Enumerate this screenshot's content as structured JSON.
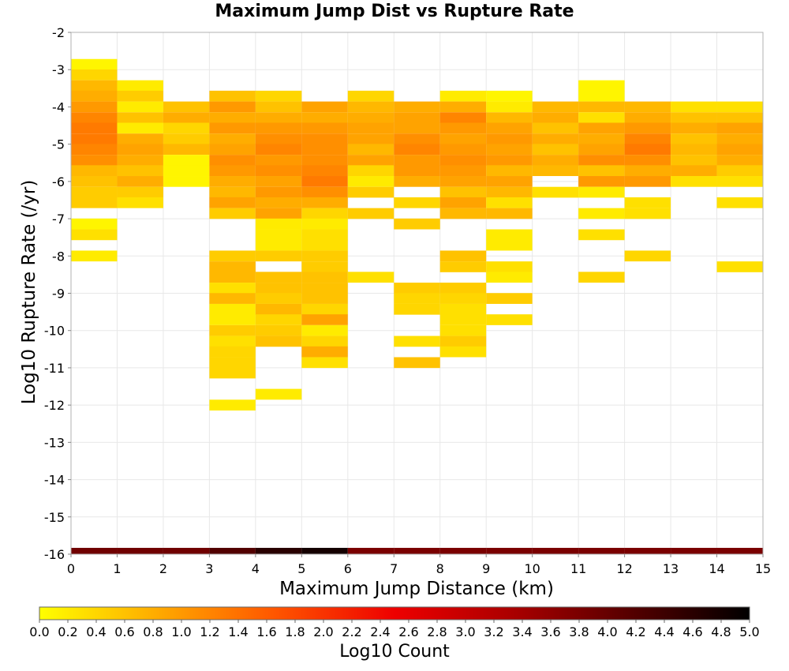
{
  "chart_data": {
    "type": "heatmap",
    "title": "Maximum Jump Dist vs Rupture Rate",
    "xlabel": "Maximum Jump Distance (km)",
    "ylabel": "Log10 Rupture Rate (/yr)",
    "xlim": [
      0,
      15
    ],
    "ylim": [
      -16,
      -2
    ],
    "x_ticks": [
      "0",
      "1",
      "2",
      "3",
      "4",
      "5",
      "6",
      "7",
      "8",
      "9",
      "10",
      "11",
      "12",
      "13",
      "14",
      "15"
    ],
    "y_ticks": [
      "-2",
      "-3",
      "-4",
      "-5",
      "-6",
      "-7",
      "-8",
      "-9",
      "-10",
      "-11",
      "-12",
      "-13",
      "-14",
      "-15",
      "-16"
    ],
    "x_bin_width": 1,
    "y_bin_height": 0.29,
    "grid": true,
    "colorbar": {
      "label": "Log10 Count",
      "range": [
        0.0,
        5.0
      ],
      "ticks": [
        "0.0",
        "0.2",
        "0.4",
        "0.6",
        "0.8",
        "1.0",
        "1.2",
        "1.4",
        "1.6",
        "1.8",
        "2.0",
        "2.2",
        "2.4",
        "2.6",
        "2.8",
        "3.0",
        "3.2",
        "3.4",
        "3.6",
        "3.8",
        "4.0",
        "4.2",
        "4.4",
        "4.6",
        "4.8",
        "5.0"
      ],
      "colors": [
        "#ffff00",
        "#ffaa00",
        "#ff5500",
        "#ee0000",
        "#aa0000",
        "#550000",
        "#000000"
      ]
    },
    "marginal_counts": [
      3.9,
      3.9,
      3.9,
      4.2,
      4.6,
      4.8,
      3.8,
      3.8,
      3.8,
      3.8,
      3.8,
      3.8,
      3.8,
      3.8,
      3.8
    ],
    "columns": [
      {
        "x": 0,
        "cells": [
          [
            -2.86,
            0.1
          ],
          [
            -3.14,
            0.4
          ],
          [
            -3.43,
            0.7
          ],
          [
            -3.71,
            0.8
          ],
          [
            -4.0,
            1.0
          ],
          [
            -4.29,
            1.2
          ],
          [
            -4.57,
            1.3
          ],
          [
            -4.86,
            1.3
          ],
          [
            -5.14,
            1.2
          ],
          [
            -5.43,
            1.1
          ],
          [
            -5.71,
            0.7
          ],
          [
            -6.0,
            0.6
          ],
          [
            -6.29,
            0.5
          ],
          [
            -6.57,
            0.5
          ],
          [
            -7.14,
            0.1
          ],
          [
            -7.43,
            0.3
          ],
          [
            -8.0,
            0.2
          ]
        ]
      },
      {
        "x": 1,
        "cells": [
          [
            -3.43,
            0.2
          ],
          [
            -3.71,
            0.5
          ],
          [
            -4.0,
            0.2
          ],
          [
            -4.29,
            0.6
          ],
          [
            -4.57,
            0.2
          ],
          [
            -4.86,
            0.8
          ],
          [
            -5.14,
            0.9
          ],
          [
            -5.43,
            0.8
          ],
          [
            -5.71,
            0.6
          ],
          [
            -6.0,
            0.8
          ],
          [
            -6.29,
            0.5
          ],
          [
            -6.57,
            0.3
          ]
        ]
      },
      {
        "x": 2,
        "cells": [
          [
            -4.0,
            0.6
          ],
          [
            -4.29,
            0.8
          ],
          [
            -4.57,
            0.4
          ],
          [
            -4.86,
            0.5
          ],
          [
            -5.14,
            0.7
          ],
          [
            -5.43,
            0.1
          ],
          [
            -5.71,
            0.1
          ],
          [
            -6.0,
            0.1
          ]
        ]
      },
      {
        "x": 3,
        "cells": [
          [
            -3.71,
            0.6
          ],
          [
            -4.0,
            1.0
          ],
          [
            -4.29,
            0.8
          ],
          [
            -4.57,
            1.0
          ],
          [
            -4.86,
            0.8
          ],
          [
            -5.14,
            0.9
          ],
          [
            -5.43,
            1.1
          ],
          [
            -5.71,
            1.0
          ],
          [
            -6.0,
            0.8
          ],
          [
            -6.29,
            0.7
          ],
          [
            -6.57,
            0.9
          ],
          [
            -6.86,
            0.5
          ],
          [
            -8.0,
            0.5
          ],
          [
            -8.29,
            0.7
          ],
          [
            -8.57,
            0.7
          ],
          [
            -8.86,
            0.3
          ],
          [
            -9.14,
            0.7
          ],
          [
            -9.43,
            0.2
          ],
          [
            -9.71,
            0.2
          ],
          [
            -10.0,
            0.5
          ],
          [
            -10.29,
            0.3
          ],
          [
            -10.57,
            0.4
          ],
          [
            -10.86,
            0.4
          ],
          [
            -11.14,
            0.4
          ],
          [
            -12.0,
            0.2
          ]
        ]
      },
      {
        "x": 4,
        "cells": [
          [
            -3.71,
            0.4
          ],
          [
            -4.0,
            0.6
          ],
          [
            -4.29,
            0.8
          ],
          [
            -4.57,
            1.0
          ],
          [
            -4.86,
            1.1
          ],
          [
            -5.14,
            1.2
          ],
          [
            -5.43,
            1.0
          ],
          [
            -5.71,
            1.1
          ],
          [
            -6.0,
            0.9
          ],
          [
            -6.29,
            1.0
          ],
          [
            -6.57,
            0.8
          ],
          [
            -6.86,
            0.9
          ],
          [
            -7.14,
            0.2
          ],
          [
            -7.43,
            0.2
          ],
          [
            -7.71,
            0.2
          ],
          [
            -8.0,
            0.5
          ],
          [
            -8.57,
            0.6
          ],
          [
            -8.86,
            0.6
          ],
          [
            -9.14,
            0.5
          ],
          [
            -9.43,
            0.7
          ],
          [
            -9.71,
            0.4
          ],
          [
            -10.0,
            0.5
          ],
          [
            -10.29,
            0.6
          ],
          [
            -11.71,
            0.2
          ]
        ]
      },
      {
        "x": 5,
        "cells": [
          [
            -4.0,
            0.9
          ],
          [
            -4.29,
            0.8
          ],
          [
            -4.57,
            1.0
          ],
          [
            -4.86,
            1.1
          ],
          [
            -5.14,
            1.1
          ],
          [
            -5.43,
            1.1
          ],
          [
            -5.71,
            1.2
          ],
          [
            -6.0,
            1.3
          ],
          [
            -6.29,
            1.1
          ],
          [
            -6.57,
            0.8
          ],
          [
            -6.86,
            0.4
          ],
          [
            -7.14,
            0.2
          ],
          [
            -7.43,
            0.3
          ],
          [
            -7.71,
            0.3
          ],
          [
            -8.0,
            0.5
          ],
          [
            -8.29,
            0.5
          ],
          [
            -8.57,
            0.6
          ],
          [
            -8.86,
            0.6
          ],
          [
            -9.14,
            0.6
          ],
          [
            -9.43,
            0.4
          ],
          [
            -9.71,
            0.9
          ],
          [
            -10.0,
            0.2
          ],
          [
            -10.29,
            0.4
          ],
          [
            -10.57,
            0.8
          ],
          [
            -10.86,
            0.3
          ]
        ]
      },
      {
        "x": 6,
        "cells": [
          [
            -3.71,
            0.4
          ],
          [
            -4.0,
            0.7
          ],
          [
            -4.29,
            0.8
          ],
          [
            -4.57,
            0.9
          ],
          [
            -4.86,
            0.9
          ],
          [
            -5.14,
            0.7
          ],
          [
            -5.43,
            0.9
          ],
          [
            -5.71,
            0.4
          ],
          [
            -6.0,
            0.2
          ],
          [
            -6.29,
            0.5
          ],
          [
            -6.86,
            0.5
          ],
          [
            -8.57,
            0.3
          ]
        ]
      },
      {
        "x": 7,
        "cells": [
          [
            -4.0,
            0.8
          ],
          [
            -4.29,
            0.9
          ],
          [
            -4.57,
            0.9
          ],
          [
            -4.86,
            1.1
          ],
          [
            -5.14,
            1.2
          ],
          [
            -5.43,
            1.0
          ],
          [
            -5.71,
            1.0
          ],
          [
            -6.0,
            0.8
          ],
          [
            -6.57,
            0.4
          ],
          [
            -7.14,
            0.5
          ],
          [
            -8.86,
            0.5
          ],
          [
            -9.14,
            0.4
          ],
          [
            -9.43,
            0.4
          ],
          [
            -10.29,
            0.3
          ],
          [
            -10.86,
            0.6
          ]
        ]
      },
      {
        "x": 8,
        "cells": [
          [
            -3.71,
            0.2
          ],
          [
            -4.0,
            0.8
          ],
          [
            -4.29,
            1.2
          ],
          [
            -4.57,
            1.0
          ],
          [
            -4.86,
            0.9
          ],
          [
            -5.14,
            1.0
          ],
          [
            -5.43,
            1.1
          ],
          [
            -5.71,
            1.0
          ],
          [
            -6.0,
            0.9
          ],
          [
            -6.29,
            0.6
          ],
          [
            -6.57,
            0.9
          ],
          [
            -6.86,
            0.7
          ],
          [
            -8.0,
            0.6
          ],
          [
            -8.29,
            0.5
          ],
          [
            -8.86,
            0.5
          ],
          [
            -9.14,
            0.4
          ],
          [
            -9.43,
            0.3
          ],
          [
            -9.71,
            0.3
          ],
          [
            -10.0,
            0.3
          ],
          [
            -10.29,
            0.5
          ],
          [
            -10.57,
            0.3
          ]
        ]
      },
      {
        "x": 9,
        "cells": [
          [
            -3.71,
            0.1
          ],
          [
            -4.0,
            0.2
          ],
          [
            -4.29,
            0.7
          ],
          [
            -4.57,
            0.9
          ],
          [
            -4.86,
            1.0
          ],
          [
            -5.14,
            0.9
          ],
          [
            -5.43,
            1.0
          ],
          [
            -5.71,
            0.7
          ],
          [
            -6.0,
            0.9
          ],
          [
            -6.29,
            0.7
          ],
          [
            -6.57,
            0.3
          ],
          [
            -6.86,
            0.7
          ],
          [
            -7.71,
            0.2
          ],
          [
            -7.43,
            0.2
          ],
          [
            -8.29,
            0.3
          ],
          [
            -8.57,
            0.2
          ],
          [
            -9.14,
            0.5
          ],
          [
            -9.71,
            0.3
          ]
        ]
      },
      {
        "x": 10,
        "cells": [
          [
            -4.0,
            0.7
          ],
          [
            -4.29,
            0.8
          ],
          [
            -4.57,
            0.6
          ],
          [
            -4.86,
            0.8
          ],
          [
            -5.14,
            0.6
          ],
          [
            -5.43,
            0.8
          ],
          [
            -5.71,
            0.7
          ],
          [
            -6.29,
            0.3
          ]
        ]
      },
      {
        "x": 11,
        "cells": [
          [
            -3.43,
            0.1
          ],
          [
            -3.71,
            0.1
          ],
          [
            -4.0,
            0.7
          ],
          [
            -4.29,
            0.3
          ],
          [
            -4.57,
            0.9
          ],
          [
            -4.86,
            0.8
          ],
          [
            -5.14,
            0.9
          ],
          [
            -5.43,
            1.1
          ],
          [
            -5.71,
            0.6
          ],
          [
            -6.0,
            1.0
          ],
          [
            -6.29,
            0.2
          ],
          [
            -6.86,
            0.2
          ],
          [
            -7.43,
            0.3
          ],
          [
            -8.57,
            0.4
          ]
        ]
      },
      {
        "x": 12,
        "cells": [
          [
            -4.0,
            0.7
          ],
          [
            -4.29,
            0.8
          ],
          [
            -4.57,
            1.0
          ],
          [
            -4.86,
            1.2
          ],
          [
            -5.14,
            1.3
          ],
          [
            -5.43,
            1.1
          ],
          [
            -5.71,
            0.8
          ],
          [
            -6.0,
            1.0
          ],
          [
            -6.57,
            0.3
          ],
          [
            -6.86,
            0.3
          ],
          [
            -8.0,
            0.4
          ]
        ]
      },
      {
        "x": 13,
        "cells": [
          [
            -4.0,
            0.3
          ],
          [
            -4.29,
            0.6
          ],
          [
            -4.57,
            0.8
          ],
          [
            -4.86,
            0.6
          ],
          [
            -5.14,
            0.7
          ],
          [
            -5.43,
            0.6
          ],
          [
            -5.71,
            0.8
          ],
          [
            -6.0,
            0.3
          ]
        ]
      },
      {
        "x": 14,
        "cells": [
          [
            -4.0,
            0.3
          ],
          [
            -4.29,
            0.6
          ],
          [
            -4.57,
            0.9
          ],
          [
            -4.86,
            0.8
          ],
          [
            -5.14,
            0.9
          ],
          [
            -5.43,
            0.8
          ],
          [
            -5.71,
            0.5
          ],
          [
            -6.0,
            0.3
          ],
          [
            -6.57,
            0.3
          ],
          [
            -8.29,
            0.3
          ]
        ]
      }
    ]
  }
}
